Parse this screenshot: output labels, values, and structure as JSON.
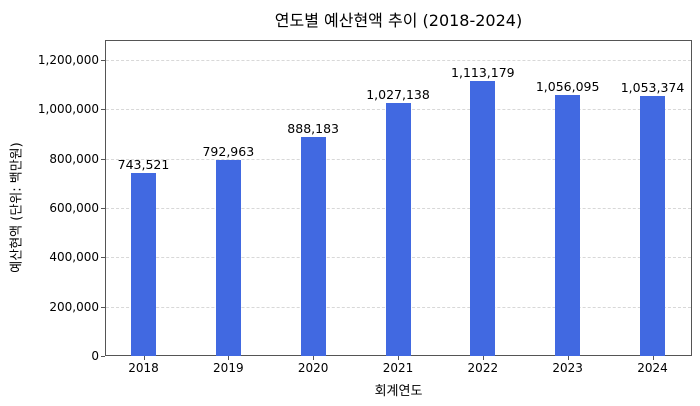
{
  "chart_data": {
    "type": "bar",
    "title": "연도별 예산현액 추이 (2018-2024)",
    "xlabel": "회계연도",
    "ylabel": "예산현액 (단위: 백만원)",
    "categories": [
      "2018",
      "2019",
      "2020",
      "2021",
      "2022",
      "2023",
      "2024"
    ],
    "values": [
      743521,
      792963,
      888183,
      1027138,
      1113179,
      1056095,
      1053374
    ],
    "value_labels": [
      "743,521",
      "792,963",
      "888,183",
      "1,027,138",
      "1,113,179",
      "1,056,095",
      "1,053,374"
    ],
    "ylim": [
      0,
      1280000
    ],
    "yticks": [
      0,
      200000,
      400000,
      600000,
      800000,
      1000000,
      1200000
    ],
    "ytick_labels": [
      "0",
      "200,000",
      "400,000",
      "600,000",
      "800,000",
      "1,000,000",
      "1,200,000"
    ],
    "grid": true,
    "bar_color": "#4169e1",
    "legend": null
  }
}
